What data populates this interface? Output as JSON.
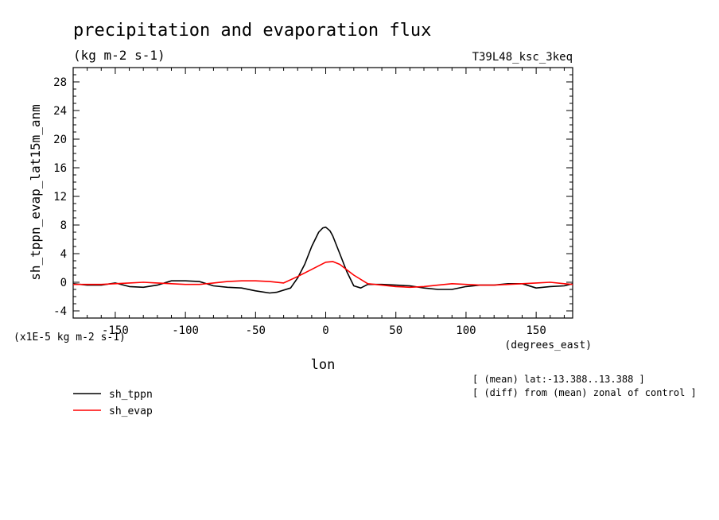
{
  "chart_data": {
    "type": "line",
    "title": "precipitation and evaporation flux",
    "subtitle": "(kg m-2 s-1)",
    "run_label": "T39L48_ksc_3keq",
    "ylabel": "sh_tppn_evap_lat15m_anm",
    "yunits": "(x1E-5 kg m-2 s-1)",
    "xlabel": "lon",
    "xunits": "(degrees_east)",
    "xlim": [
      -180,
      176
    ],
    "ylim": [
      -5,
      30
    ],
    "xticks": [
      -150,
      -100,
      -50,
      0,
      50,
      100,
      150
    ],
    "xtick_labels": [
      "-150",
      "-100",
      "-50",
      "0",
      "50",
      "100",
      "150"
    ],
    "yticks": [
      -4,
      0,
      4,
      8,
      12,
      16,
      20,
      24,
      28
    ],
    "ytick_labels": [
      "-4",
      "0",
      "4",
      "8",
      "12",
      "16",
      "20",
      "24",
      "28"
    ],
    "notes": [
      "[ (mean) lat:-13.388..13.388 ]",
      "[ (diff) from (mean) zonal of control ]"
    ],
    "grid": false,
    "legend_position": "bottom-left",
    "series": [
      {
        "name": "sh_tppn",
        "color": "#000000",
        "x": [
          -180,
          -170,
          -160,
          -150,
          -140,
          -130,
          -120,
          -110,
          -100,
          -90,
          -80,
          -70,
          -60,
          -50,
          -40,
          -35,
          -25,
          -20,
          -15,
          -10,
          -5,
          -2,
          0,
          3,
          5,
          10,
          15,
          20,
          25,
          30,
          40,
          50,
          60,
          70,
          80,
          90,
          100,
          110,
          120,
          130,
          140,
          150,
          160,
          170,
          176
        ],
        "y": [
          -0.2,
          -0.4,
          -0.4,
          -0.1,
          -0.6,
          -0.7,
          -0.4,
          0.2,
          0.2,
          0.1,
          -0.5,
          -0.7,
          -0.8,
          -1.2,
          -1.5,
          -1.4,
          -0.8,
          0.6,
          2.5,
          5.0,
          7.0,
          7.6,
          7.7,
          7.2,
          6.5,
          4.0,
          1.5,
          -0.5,
          -0.8,
          -0.3,
          -0.3,
          -0.4,
          -0.5,
          -0.8,
          -1.0,
          -1.0,
          -0.6,
          -0.4,
          -0.4,
          -0.2,
          -0.2,
          -0.8,
          -0.6,
          -0.5,
          -0.2
        ]
      },
      {
        "name": "sh_evap",
        "color": "#ff0000",
        "x": [
          -180,
          -160,
          -140,
          -130,
          -120,
          -100,
          -90,
          -80,
          -70,
          -60,
          -50,
          -40,
          -30,
          -20,
          -10,
          0,
          5,
          10,
          20,
          30,
          40,
          50,
          60,
          70,
          80,
          90,
          100,
          110,
          120,
          130,
          140,
          150,
          160,
          170,
          176
        ],
        "y": [
          -0.3,
          -0.3,
          -0.1,
          0.0,
          -0.1,
          -0.3,
          -0.3,
          -0.1,
          0.1,
          0.2,
          0.2,
          0.1,
          -0.1,
          0.8,
          1.8,
          2.8,
          2.9,
          2.5,
          1.0,
          -0.2,
          -0.4,
          -0.6,
          -0.7,
          -0.6,
          -0.4,
          -0.2,
          -0.3,
          -0.4,
          -0.4,
          -0.3,
          -0.2,
          -0.1,
          0.0,
          -0.2,
          -0.3
        ]
      }
    ]
  }
}
